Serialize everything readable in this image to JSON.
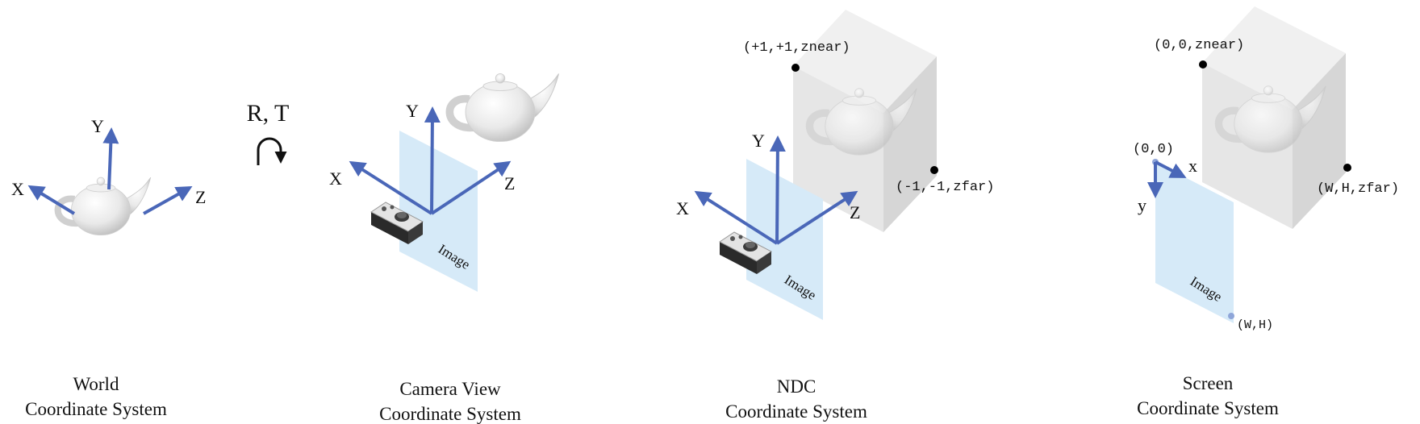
{
  "colors": {
    "axis": "#4a67b8",
    "plane": "#d6eaf8",
    "box": "#e6e6e6",
    "box_dark": "#d6d6d6",
    "point": "#000000",
    "screen_point": "#8fa6d9"
  },
  "transform": {
    "label": "R, T",
    "icon": "curved-arrow-down-icon"
  },
  "world": {
    "axes": {
      "x": "X",
      "y": "Y",
      "z": "Z"
    },
    "caption": {
      "line1": "World",
      "line2": "Coordinate System"
    }
  },
  "camera": {
    "axes": {
      "x": "X",
      "y": "Y",
      "z": "Z"
    },
    "image_label": "Image",
    "caption": {
      "line1": "Camera View",
      "line2": "Coordinate System"
    }
  },
  "ndc": {
    "axes": {
      "x": "X",
      "y": "Y",
      "z": "Z"
    },
    "image_label": "Image",
    "corner_near": "(+1,+1,znear)",
    "corner_far": "(-1,-1,zfar)",
    "caption": {
      "line1": "NDC",
      "line2": "Coordinate System"
    }
  },
  "screen": {
    "origin": "(0,0)",
    "axes": {
      "x": "x",
      "y": "y"
    },
    "image_label": "Image",
    "corner_near": "(0,0,znear)",
    "corner_far": "(W,H,zfar)",
    "image_corner": "(W,H)",
    "caption": {
      "line1": "Screen",
      "line2": "Coordinate System"
    }
  }
}
